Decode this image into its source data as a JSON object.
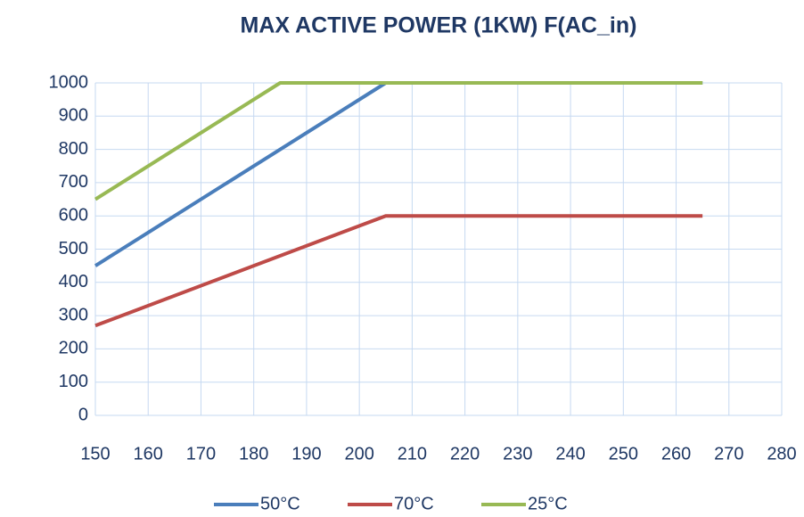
{
  "chart_data": {
    "type": "line",
    "title": "MAX ACTIVE POWER (1KW)  F(AC_in)",
    "series": [
      {
        "name": "50°C",
        "color": "#4a7ebb",
        "x": [
          150,
          205,
          265
        ],
        "values": [
          450,
          1000,
          1000
        ]
      },
      {
        "name": "70°C",
        "color": "#be4b48",
        "x": [
          150,
          205,
          265
        ],
        "values": [
          270,
          600,
          600
        ]
      },
      {
        "name": "25°C",
        "color": "#98b954",
        "x": [
          150,
          185,
          265
        ],
        "values": [
          650,
          1000,
          1000
        ]
      }
    ],
    "xlim": [
      150,
      280
    ],
    "xticks": [
      150,
      160,
      170,
      180,
      190,
      200,
      210,
      220,
      230,
      240,
      250,
      260,
      270,
      280
    ],
    "ylim": [
      0,
      1000
    ],
    "yticks": [
      0,
      100,
      200,
      300,
      400,
      500,
      600,
      700,
      800,
      900,
      1000
    ],
    "grid": true,
    "legend": "bottom"
  }
}
